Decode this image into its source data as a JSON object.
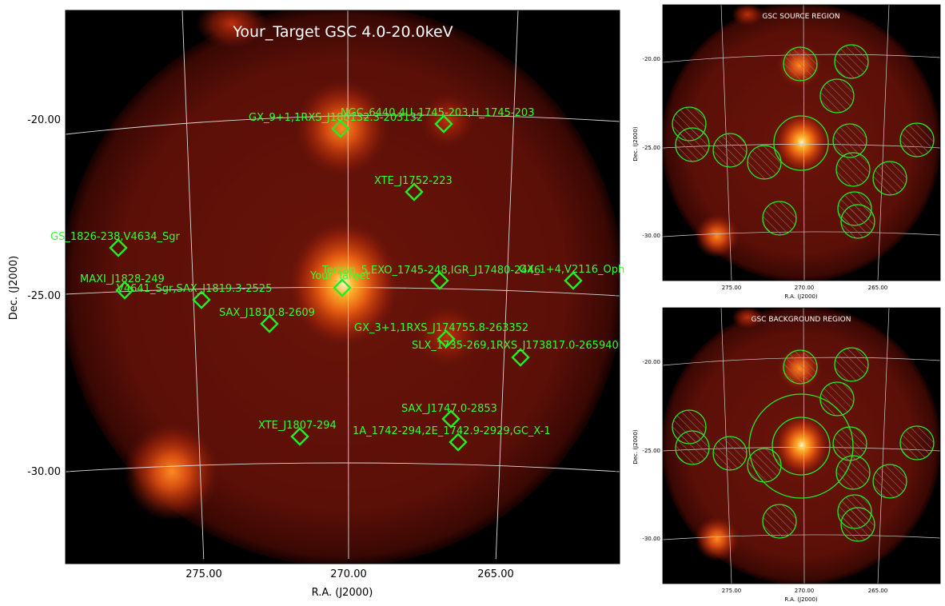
{
  "main_panel": {
    "title": "Your_Target GSC 4.0-20.0keV",
    "xlabel": "R.A. (J2000)",
    "ylabel": "Dec. (J2000)",
    "x_ticks": [
      "275.00",
      "270.00",
      "265.00"
    ],
    "y_ticks": [
      "-20.00",
      "-25.00",
      "-30.00"
    ],
    "target_label": "Your_Target",
    "sources": [
      {
        "label": "NGC_6440,4U_1745-203,H_1745-203"
      },
      {
        "label": "GX_9+1,1RXS_J180132.3-203132"
      },
      {
        "label": "XTE_J1752-223"
      },
      {
        "label": "GS_1826-238,V4634_Sgr"
      },
      {
        "label": "MAXI_J1828-249"
      },
      {
        "label": "V4641_Sgr,SAX_J1819.3-2525"
      },
      {
        "label": "Terzan_5,EXO_1745-248,IGR_J17480-2446"
      },
      {
        "label": "GX_1+4,V2116_Oph"
      },
      {
        "label": "SAX_J1810.8-2609"
      },
      {
        "label": "GX_3+1,1RXS_J174755.8-263352"
      },
      {
        "label": "SLX_1735-269,1RXS_J173817.0-265940"
      },
      {
        "label": "SAX_J1747.0-2853"
      },
      {
        "label": "XTE_J1807-294"
      },
      {
        "label": "1A_1742-294,2E_1742.9-2929,GC_X-1"
      }
    ]
  },
  "source_panel": {
    "title": "GSC SOURCE REGION",
    "xlabel": "R.A. (J2000)",
    "ylabel": "Dec. (J2000)",
    "x_ticks": [
      "275.00",
      "270.00",
      "265.00"
    ],
    "y_ticks": [
      "-20.00",
      "-25.00",
      "-30.00"
    ]
  },
  "background_panel": {
    "title": "GSC BACKGROUND REGION",
    "xlabel": "R.A. (J2000)",
    "ylabel": "Dec. (J2000)",
    "x_ticks": [
      "275.00",
      "270.00",
      "265.00"
    ],
    "y_ticks": [
      "-20.00",
      "-25.00",
      "-30.00"
    ]
  },
  "colors": {
    "marker": "#22ee22",
    "label": "#33ff33",
    "grid": "#dddddd",
    "background": "#000000"
  }
}
